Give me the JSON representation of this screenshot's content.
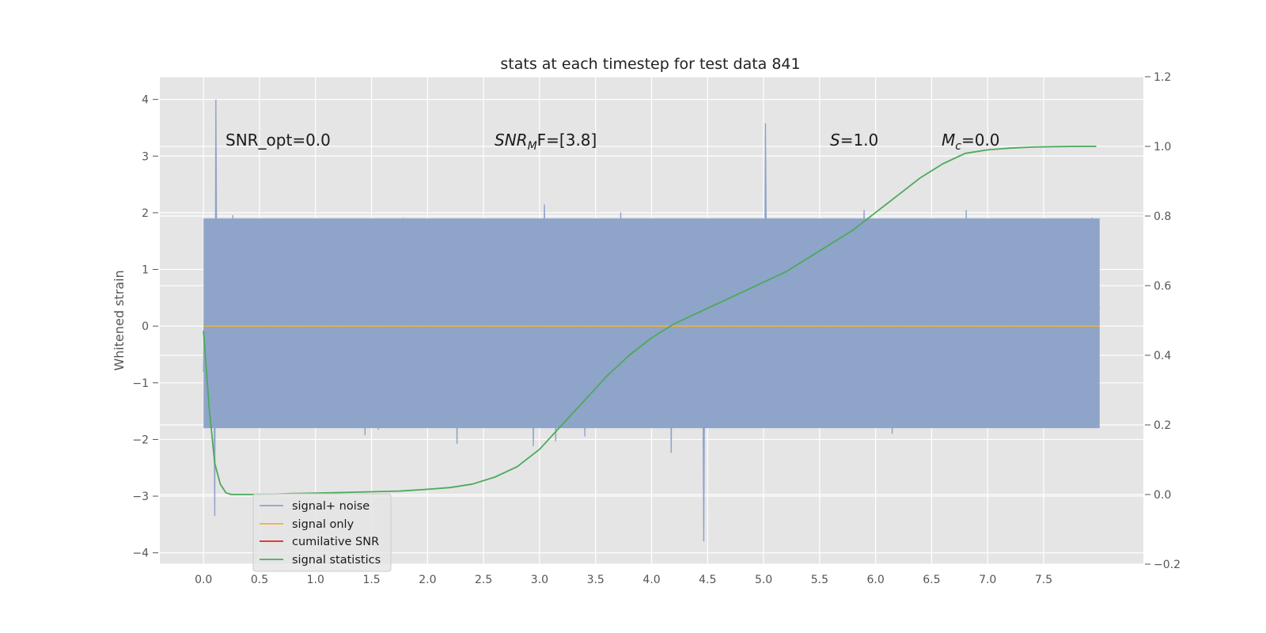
{
  "chart_data": {
    "type": "line",
    "title": "stats at each timestep for test data 841",
    "ylabel": "Whitened strain",
    "xlim": [
      -0.39,
      8.39
    ],
    "ylim": [
      -4.2,
      4.4
    ],
    "ylim_right": [
      -0.2,
      1.2
    ],
    "x_ticks": [
      "0.0",
      "0.5",
      "1.0",
      "1.5",
      "2.0",
      "2.5",
      "3.0",
      "3.5",
      "4.0",
      "4.5",
      "5.0",
      "5.5",
      "6.0",
      "6.5",
      "7.0",
      "7.5"
    ],
    "y_ticks": [
      "4",
      "3",
      "2",
      "1",
      "0",
      "−1",
      "−2",
      "−3",
      "−4"
    ],
    "y_ticks_right": [
      "1.2",
      "1.0",
      "0.8",
      "0.6",
      "0.4",
      "0.2",
      "0.0",
      "−0.2"
    ],
    "grid": true,
    "legend_position": "lower-left",
    "annotations": {
      "snr_opt": "SNR_opt=0.0",
      "snr_mf_main": "SNR",
      "snr_mf_sub": "M",
      "snr_mf_rest": "F=[3.8]",
      "s_sym": "S",
      "s_val": "=1.0",
      "mc_main": "M",
      "mc_sub": "c",
      "mc_val": "=0.0"
    },
    "series": [
      {
        "name": "signal+ noise",
        "axis": "left",
        "color": "#8fa4c9",
        "x_range": [
          0.0,
          8.0
        ],
        "sample_count": 800,
        "band": [
          -1.8,
          1.9
        ],
        "extremes": [
          [
            0.11,
            4.0
          ],
          [
            0.1,
            -3.35
          ],
          [
            4.47,
            -3.8
          ],
          [
            5.02,
            3.58
          ]
        ]
      },
      {
        "name": "signal only",
        "axis": "left",
        "color": "#e8b04b",
        "x": [
          0.0,
          8.0
        ],
        "y": [
          0.0,
          0.0
        ]
      },
      {
        "name": "cumilative SNR",
        "axis": "right",
        "color": "#d62728",
        "x": [],
        "y": []
      },
      {
        "name": "signal statistics",
        "axis": "right",
        "color": "#4caa5a",
        "x": [
          0.0,
          0.05,
          0.1,
          0.15,
          0.2,
          0.25,
          0.3,
          0.4,
          0.6,
          0.8,
          1.0,
          1.25,
          1.5,
          1.75,
          2.0,
          2.2,
          2.4,
          2.6,
          2.8,
          3.0,
          3.2,
          3.4,
          3.6,
          3.8,
          4.0,
          4.2,
          4.4,
          4.6,
          4.8,
          5.0,
          5.2,
          5.4,
          5.6,
          5.8,
          6.0,
          6.2,
          6.4,
          6.6,
          6.8,
          7.0,
          7.2,
          7.4,
          7.6,
          7.8,
          7.97
        ],
        "y": [
          0.47,
          0.25,
          0.09,
          0.03,
          0.005,
          0.0,
          0.0,
          0.0,
          0.001,
          0.003,
          0.004,
          0.006,
          0.008,
          0.01,
          0.015,
          0.02,
          0.03,
          0.05,
          0.08,
          0.13,
          0.2,
          0.27,
          0.34,
          0.4,
          0.45,
          0.49,
          0.52,
          0.55,
          0.58,
          0.61,
          0.64,
          0.68,
          0.72,
          0.76,
          0.81,
          0.86,
          0.91,
          0.95,
          0.98,
          0.99,
          0.995,
          0.998,
          0.999,
          1.0,
          1.0
        ]
      }
    ]
  }
}
